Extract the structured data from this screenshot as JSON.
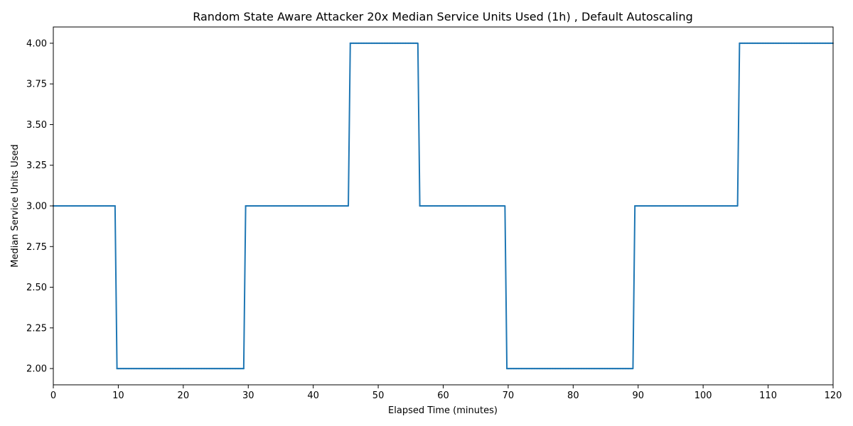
{
  "chart_data": {
    "type": "line",
    "title": "Random State Aware Attacker 20x Median Service Units Used (1h) , Default Autoscaling",
    "xlabel": "Elapsed Time (minutes)",
    "ylabel": "Median Service Units Used",
    "xlim": [
      0,
      120
    ],
    "ylim": [
      1.9,
      4.1
    ],
    "xticks": [
      0,
      10,
      20,
      30,
      40,
      50,
      60,
      70,
      80,
      90,
      100,
      110,
      120
    ],
    "yticks": [
      2.0,
      2.25,
      2.5,
      2.75,
      3.0,
      3.25,
      3.5,
      3.75,
      4.0
    ],
    "xtick_labels": [
      "0",
      "10",
      "20",
      "30",
      "40",
      "50",
      "60",
      "70",
      "80",
      "90",
      "100",
      "110",
      "120"
    ],
    "ytick_labels": [
      "2.00",
      "2.25",
      "2.50",
      "2.75",
      "3.00",
      "3.25",
      "3.50",
      "3.75",
      "4.00"
    ],
    "grid": false,
    "line_color": "#1f77b4",
    "series": [
      {
        "x": [
          0,
          9.5,
          9.8,
          29.3,
          29.6,
          45.4,
          45.7,
          56.1,
          56.4,
          69.5,
          69.8,
          89.2,
          89.5,
          105.3,
          105.6,
          120
        ],
        "y": [
          3,
          3,
          2,
          2,
          3,
          3,
          4,
          4,
          3,
          3,
          2,
          2,
          3,
          3,
          4,
          4
        ]
      }
    ]
  }
}
